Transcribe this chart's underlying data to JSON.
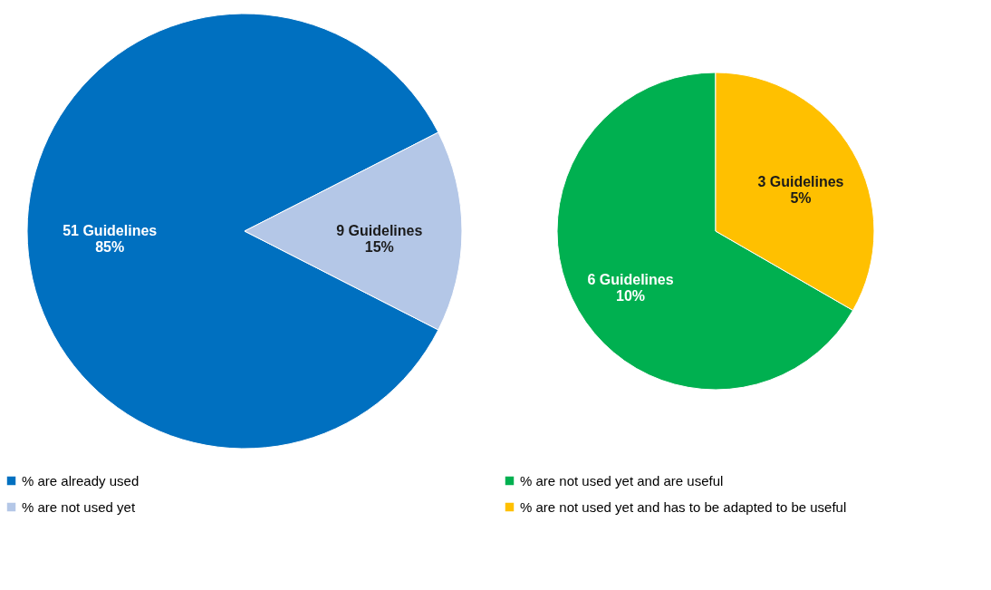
{
  "chart_data": [
    {
      "type": "pie",
      "categories": [
        "% are already used",
        "% are not used yet"
      ],
      "values": [
        51,
        9
      ],
      "colors": [
        "#0070c0",
        "#b4c7e7"
      ],
      "value_labels": [
        "51 Guidelines\n85%",
        "9 Guidelines\n15%"
      ],
      "legend": "bottom"
    },
    {
      "type": "pie",
      "categories": [
        "% are not used yet and are useful",
        "% are not used yet and has to be adapted to be useful"
      ],
      "values": [
        6,
        3
      ],
      "colors": [
        "#00b050",
        "#ffc000"
      ],
      "value_labels": [
        "6 Guidelines\n10%",
        "3 Guidelines\n5%"
      ],
      "legend": "bottom"
    }
  ]
}
